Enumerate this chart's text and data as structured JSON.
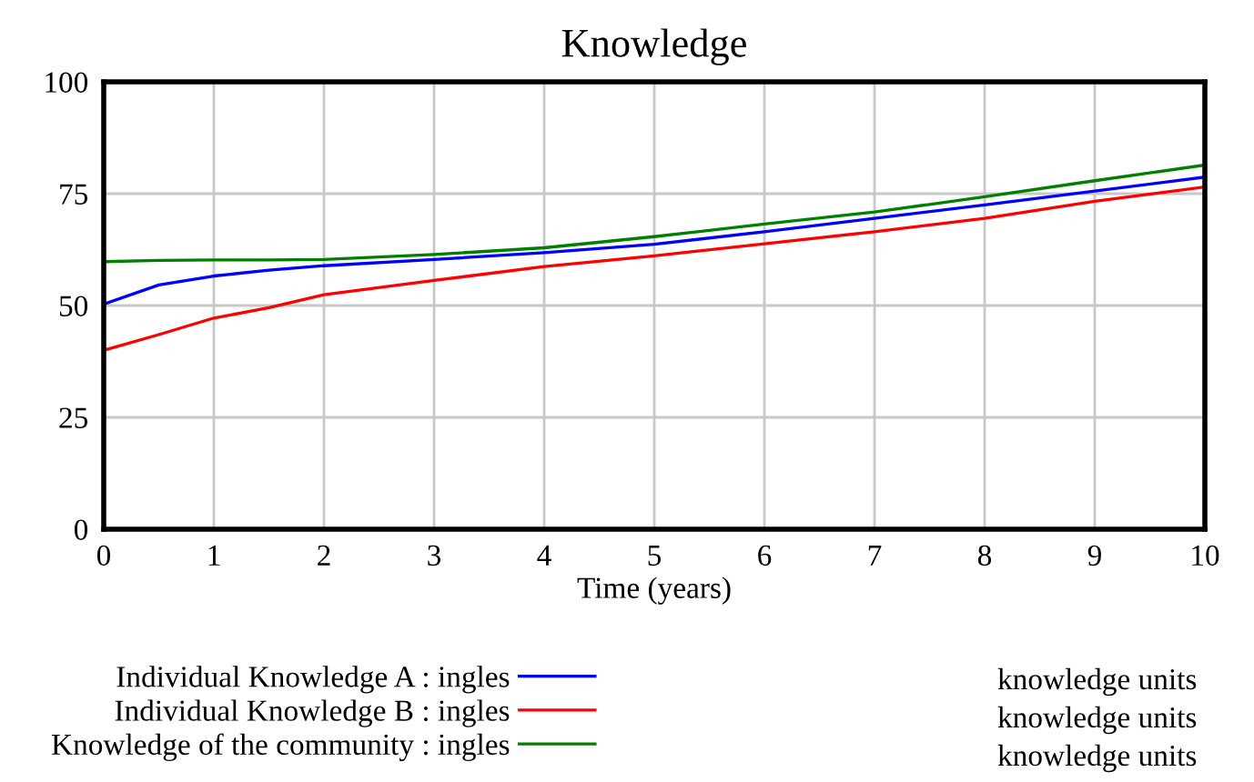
{
  "chart_data": {
    "type": "line",
    "title": "Knowledge",
    "xlabel": "Time (years)",
    "x": [
      0,
      0.5,
      1,
      1.5,
      2,
      3,
      4,
      5,
      6,
      7,
      8,
      9,
      10
    ],
    "series": [
      {
        "name": "Individual Knowledge A : ingles",
        "color": "#0000ff",
        "values": [
          50.3,
          54.6,
          56.6,
          57.9,
          58.9,
          60.3,
          61.8,
          63.7,
          66.5,
          69.5,
          72.5,
          75.6,
          78.7
        ]
      },
      {
        "name": "Individual Knowledge B : ingles",
        "color": "#ff0000",
        "values": [
          40.0,
          43.5,
          47.2,
          49.5,
          52.4,
          55.6,
          58.7,
          61.1,
          63.8,
          66.5,
          69.5,
          73.3,
          76.5
        ]
      },
      {
        "name": "Knowledge of the community : ingles",
        "color": "#008000",
        "values": [
          59.8,
          60.1,
          60.2,
          60.2,
          60.3,
          61.4,
          62.9,
          65.4,
          68.2,
          70.9,
          74.3,
          77.9,
          81.4
        ]
      }
    ],
    "annotations": [
      "knowledge units",
      "knowledge units",
      "knowledge units"
    ],
    "xlim": [
      0,
      10
    ],
    "xticks": [
      0,
      1,
      2,
      3,
      4,
      5,
      6,
      7,
      8,
      9,
      10
    ],
    "ylim": [
      0,
      100
    ],
    "yticks": [
      0,
      25,
      50,
      75,
      100
    ],
    "grid": true,
    "legend": "bottom",
    "marker": "none",
    "line_style": "solid"
  }
}
